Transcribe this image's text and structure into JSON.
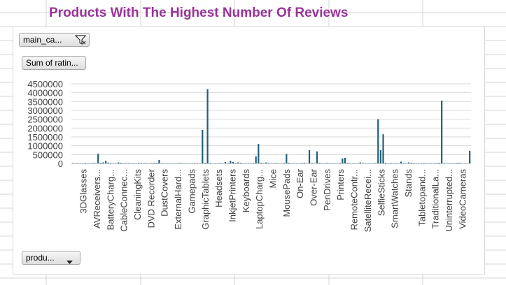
{
  "title": "Products With The Highest Number Of Reviews",
  "filter_button": {
    "label": "main_ca...",
    "icon": "funnel-icon"
  },
  "value_button": {
    "label": "Sum of ratin..."
  },
  "axis_button": {
    "label": "produ...",
    "icon": "dropdown-arrow-icon"
  },
  "colors": {
    "title": "#993399",
    "bar": "#1f5f7a",
    "gridline": "#d9d9d9"
  },
  "chart_data": {
    "type": "bar",
    "ylim": [
      0,
      4500000
    ],
    "yticks": [
      0,
      500000,
      1000000,
      1500000,
      2000000,
      2500000,
      3000000,
      3500000,
      4000000,
      4500000
    ],
    "ytick_labels": [
      "0",
      "500000",
      "1000000",
      "1500000",
      "2000000",
      "2500000",
      "3000000",
      "3500000",
      "4000000",
      "4500000"
    ],
    "grid": true,
    "x_tick_labels": [
      "3DGlasses",
      "AVReceivers...",
      "BatteryCharg...",
      "CableConnec...",
      "CleaningKits",
      "DVD Recorder",
      "DustCovers",
      "ExternalHard...",
      "Gamepads",
      "GraphicTablets",
      "Headsets",
      "InkjetPrinters",
      "Keyboards",
      "LaptopCharg...",
      "Mice",
      "MousePads",
      "On-Ear",
      "Over-Ear",
      "PenDrives",
      "Printers",
      "RemoteContr...",
      "SatelliteRecei...",
      "SelfieSticks",
      "SmartWatches",
      "Stands",
      "Tabletopand...",
      "TraditionalLa...",
      "Uninterrupted...",
      "VideoCameras"
    ],
    "values": [
      30000,
      20000,
      25000,
      15000,
      10000,
      35000,
      20000,
      15000,
      30000,
      25000,
      550000,
      40000,
      60000,
      150000,
      50000,
      30000,
      20000,
      15000,
      60000,
      40000,
      10000,
      30000,
      25000,
      15000,
      10000,
      20000,
      40000,
      35000,
      30000,
      25000,
      20000,
      30000,
      35000,
      40000,
      200000,
      30000,
      20000,
      15000,
      10000,
      15000,
      20000,
      10000,
      30000,
      25000,
      15000,
      10000,
      20000,
      15000,
      30000,
      10000,
      20000,
      1900000,
      40000,
      4200000,
      30000,
      20000,
      10000,
      15000,
      30000,
      20000,
      80000,
      30000,
      150000,
      80000,
      30000,
      60000,
      40000,
      20000,
      15000,
      10000,
      20000,
      30000,
      400000,
      1100000,
      40000,
      20000,
      60000,
      30000,
      20000,
      10000,
      30000,
      20000,
      15000,
      30000,
      540000,
      40000,
      20000,
      10000,
      15000,
      20000,
      30000,
      40000,
      20000,
      750000,
      30000,
      20000,
      680000,
      40000,
      20000,
      10000,
      30000,
      20000,
      15000,
      10000,
      20000,
      30000,
      280000,
      320000,
      40000,
      20000,
      15000,
      10000,
      20000,
      60000,
      30000,
      20000,
      15000,
      10000,
      20000,
      30000,
      2500000,
      750000,
      1650000,
      40000,
      20000,
      30000,
      15000,
      10000,
      20000,
      100000,
      30000,
      20000,
      60000,
      40000,
      30000,
      20000,
      15000,
      10000,
      30000,
      20000,
      15000,
      10000,
      20000,
      30000,
      40000,
      3550000,
      30000,
      20000,
      15000,
      10000,
      20000,
      30000,
      40000,
      20000,
      15000,
      10000,
      720000
    ]
  }
}
